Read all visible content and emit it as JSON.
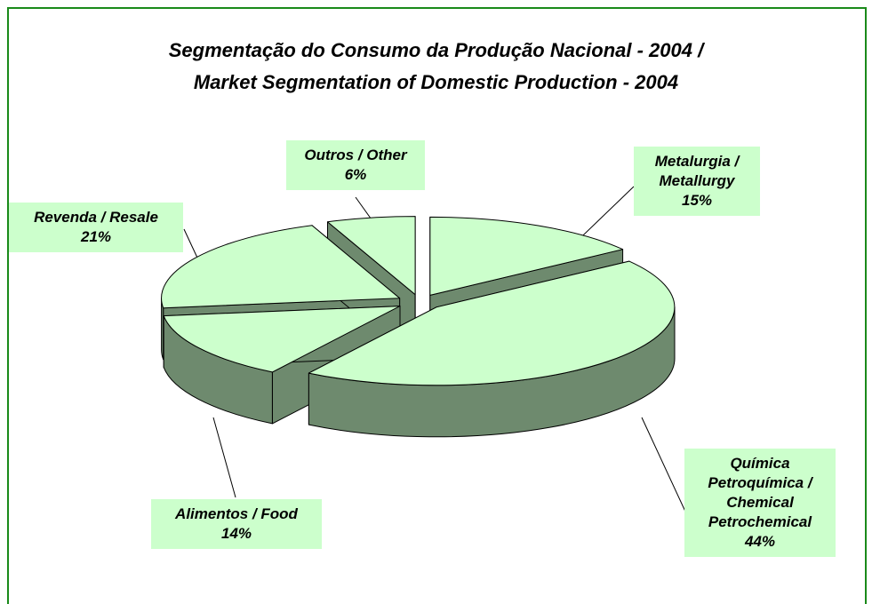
{
  "chart_data": {
    "type": "pie3d",
    "title": "Segmentação do Consumo da Produção Nacional - 2004 /",
    "subtitle": "Market Segmentation of Domestic Production - 2004",
    "categories": [
      "Metalurgia / Metallurgy",
      "Química Petroquímica / Chemical Petrochemical",
      "Alimentos / Food",
      "Revenda / Resale",
      "Outros / Other"
    ],
    "values": [
      15,
      44,
      14,
      21,
      6
    ],
    "value_labels": [
      "15%",
      "44%",
      "14%",
      "21%",
      "6%"
    ],
    "color": "#ccffcc",
    "side_color": "#6e8a6e"
  }
}
